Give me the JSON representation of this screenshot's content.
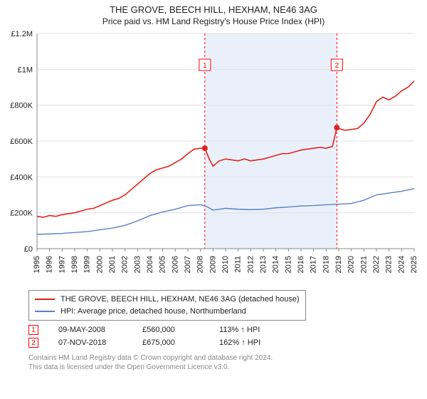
{
  "title": "THE GROVE, BEECH HILL, HEXHAM, NE46 3AG",
  "subtitle": "Price paid vs. HM Land Registry's House Price Index (HPI)",
  "chart": {
    "type": "line",
    "background_color": "#ffffff",
    "plot_background": "#ffffff",
    "shaded_band_color": "#eaf0fa",
    "grid_color": "#e0e0e0",
    "axis_color": "#888888",
    "xlim": [
      1995,
      2025
    ],
    "ylim": [
      0,
      1200000
    ],
    "ytick_step": 200000,
    "ytick_labels": [
      "£0",
      "£200K",
      "£400K",
      "£600K",
      "£800K",
      "£1M",
      "£1.2M"
    ],
    "xtick_step": 1,
    "xtick_labels": [
      "1995",
      "1996",
      "1997",
      "1998",
      "1999",
      "2000",
      "2001",
      "2002",
      "2003",
      "2004",
      "2005",
      "2006",
      "2007",
      "2008",
      "2009",
      "2010",
      "2011",
      "2012",
      "2013",
      "2014",
      "2015",
      "2016",
      "2017",
      "2018",
      "2019",
      "2020",
      "2021",
      "2022",
      "2023",
      "2024",
      "2025"
    ],
    "shaded_band": {
      "x_start": 2008.35,
      "x_end": 2018.85
    },
    "sale_lines": [
      {
        "x": 2008.35,
        "label": "1",
        "color": "#ff0000",
        "dash": "3,3"
      },
      {
        "x": 2018.85,
        "label": "2",
        "color": "#ff0000",
        "dash": "3,3"
      }
    ],
    "series": [
      {
        "name": "property",
        "color": "#e2231a",
        "line_width": 1.6,
        "points": [
          [
            1995,
            180000
          ],
          [
            1995.5,
            175000
          ],
          [
            1996,
            185000
          ],
          [
            1996.5,
            180000
          ],
          [
            1997,
            190000
          ],
          [
            1997.5,
            195000
          ],
          [
            1998,
            200000
          ],
          [
            1998.5,
            210000
          ],
          [
            1999,
            220000
          ],
          [
            1999.5,
            225000
          ],
          [
            2000,
            240000
          ],
          [
            2000.5,
            255000
          ],
          [
            2001,
            270000
          ],
          [
            2001.5,
            280000
          ],
          [
            2002,
            300000
          ],
          [
            2002.5,
            330000
          ],
          [
            2003,
            360000
          ],
          [
            2003.5,
            390000
          ],
          [
            2004,
            420000
          ],
          [
            2004.5,
            440000
          ],
          [
            2005,
            450000
          ],
          [
            2005.5,
            460000
          ],
          [
            2006,
            480000
          ],
          [
            2006.5,
            500000
          ],
          [
            2007,
            530000
          ],
          [
            2007.5,
            555000
          ],
          [
            2008,
            560000
          ],
          [
            2008.35,
            560000
          ],
          [
            2008.7,
            500000
          ],
          [
            2009,
            460000
          ],
          [
            2009.5,
            490000
          ],
          [
            2010,
            500000
          ],
          [
            2010.5,
            495000
          ],
          [
            2011,
            490000
          ],
          [
            2011.5,
            500000
          ],
          [
            2012,
            490000
          ],
          [
            2012.5,
            495000
          ],
          [
            2013,
            500000
          ],
          [
            2013.5,
            510000
          ],
          [
            2014,
            520000
          ],
          [
            2014.5,
            530000
          ],
          [
            2015,
            530000
          ],
          [
            2015.5,
            540000
          ],
          [
            2016,
            550000
          ],
          [
            2016.5,
            555000
          ],
          [
            2017,
            560000
          ],
          [
            2017.5,
            565000
          ],
          [
            2018,
            560000
          ],
          [
            2018.5,
            570000
          ],
          [
            2018.85,
            675000
          ],
          [
            2019,
            670000
          ],
          [
            2019.5,
            660000
          ],
          [
            2020,
            665000
          ],
          [
            2020.5,
            670000
          ],
          [
            2021,
            700000
          ],
          [
            2021.5,
            750000
          ],
          [
            2022,
            820000
          ],
          [
            2022.5,
            845000
          ],
          [
            2023,
            830000
          ],
          [
            2023.5,
            850000
          ],
          [
            2024,
            880000
          ],
          [
            2024.5,
            900000
          ],
          [
            2025,
            935000
          ]
        ]
      },
      {
        "name": "hpi",
        "color": "#5b7fc7",
        "line_width": 1.4,
        "points": [
          [
            1995,
            80000
          ],
          [
            1996,
            82000
          ],
          [
            1997,
            85000
          ],
          [
            1998,
            90000
          ],
          [
            1999,
            95000
          ],
          [
            2000,
            105000
          ],
          [
            2001,
            115000
          ],
          [
            2002,
            130000
          ],
          [
            2003,
            155000
          ],
          [
            2004,
            185000
          ],
          [
            2005,
            205000
          ],
          [
            2006,
            220000
          ],
          [
            2007,
            240000
          ],
          [
            2008,
            245000
          ],
          [
            2008.5,
            235000
          ],
          [
            2009,
            215000
          ],
          [
            2010,
            225000
          ],
          [
            2011,
            220000
          ],
          [
            2012,
            218000
          ],
          [
            2013,
            220000
          ],
          [
            2014,
            228000
          ],
          [
            2015,
            232000
          ],
          [
            2016,
            238000
          ],
          [
            2017,
            240000
          ],
          [
            2018,
            245000
          ],
          [
            2019,
            248000
          ],
          [
            2020,
            252000
          ],
          [
            2021,
            270000
          ],
          [
            2022,
            300000
          ],
          [
            2023,
            310000
          ],
          [
            2024,
            320000
          ],
          [
            2025,
            335000
          ]
        ]
      }
    ],
    "sale_markers": [
      {
        "x": 2008.35,
        "y": 560000,
        "color": "#e2231a",
        "radius": 4
      },
      {
        "x": 2018.85,
        "y": 675000,
        "color": "#e2231a",
        "radius": 4
      }
    ],
    "label_fontsize": 11,
    "title_fontsize": 13
  },
  "legend": {
    "items": [
      {
        "color": "#e2231a",
        "label": "THE GROVE, BEECH HILL, HEXHAM, NE46 3AG (detached house)"
      },
      {
        "color": "#5b7fc7",
        "label": "HPI: Average price, detached house, Northumberland"
      }
    ]
  },
  "sales_table": {
    "rows": [
      {
        "marker": "1",
        "date": "09-MAY-2008",
        "price": "£560,000",
        "pct": "113% ↑ HPI"
      },
      {
        "marker": "2",
        "date": "07-NOV-2018",
        "price": "£675,000",
        "pct": "162% ↑ HPI"
      }
    ]
  },
  "footer": {
    "line1": "Contains HM Land Registry data © Crown copyright and database right 2024.",
    "line2": "This data is licensed under the Open Government Licence v3.0."
  }
}
